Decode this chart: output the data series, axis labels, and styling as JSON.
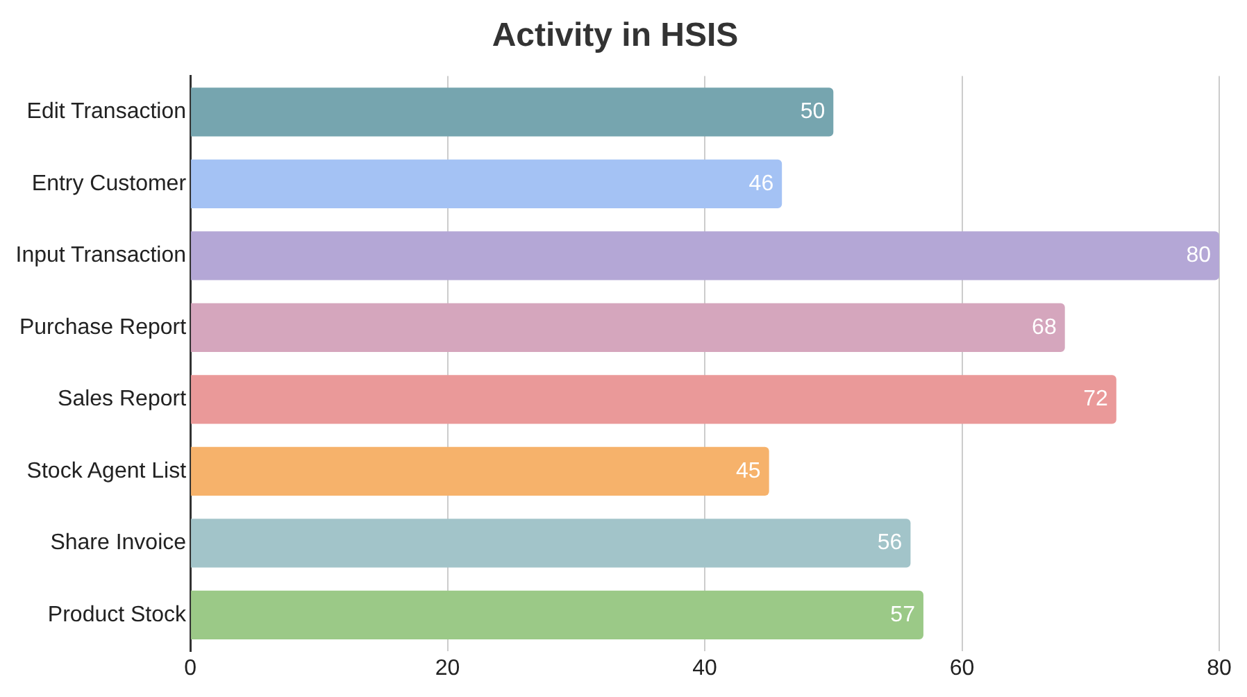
{
  "chart_data": {
    "type": "bar",
    "orientation": "horizontal",
    "title": "Activity in HSIS",
    "categories": [
      "Edit Transaction",
      "Entry Customer",
      "Input Transaction",
      "Purchase Report",
      "Sales Report",
      "Stock Agent List",
      "Share Invoice",
      "Product Stock"
    ],
    "values": [
      50,
      46,
      80,
      68,
      72,
      45,
      56,
      57
    ],
    "colors": [
      "#76a5af",
      "#a4c2f4",
      "#b4a7d6",
      "#d5a6bd",
      "#ea9999",
      "#f6b26b",
      "#a2c4c9",
      "#9bc987"
    ],
    "xlim": [
      0,
      80
    ],
    "xticks": [
      0,
      20,
      40,
      60,
      80
    ],
    "grid": "x",
    "data_labels": true,
    "legend": false
  }
}
